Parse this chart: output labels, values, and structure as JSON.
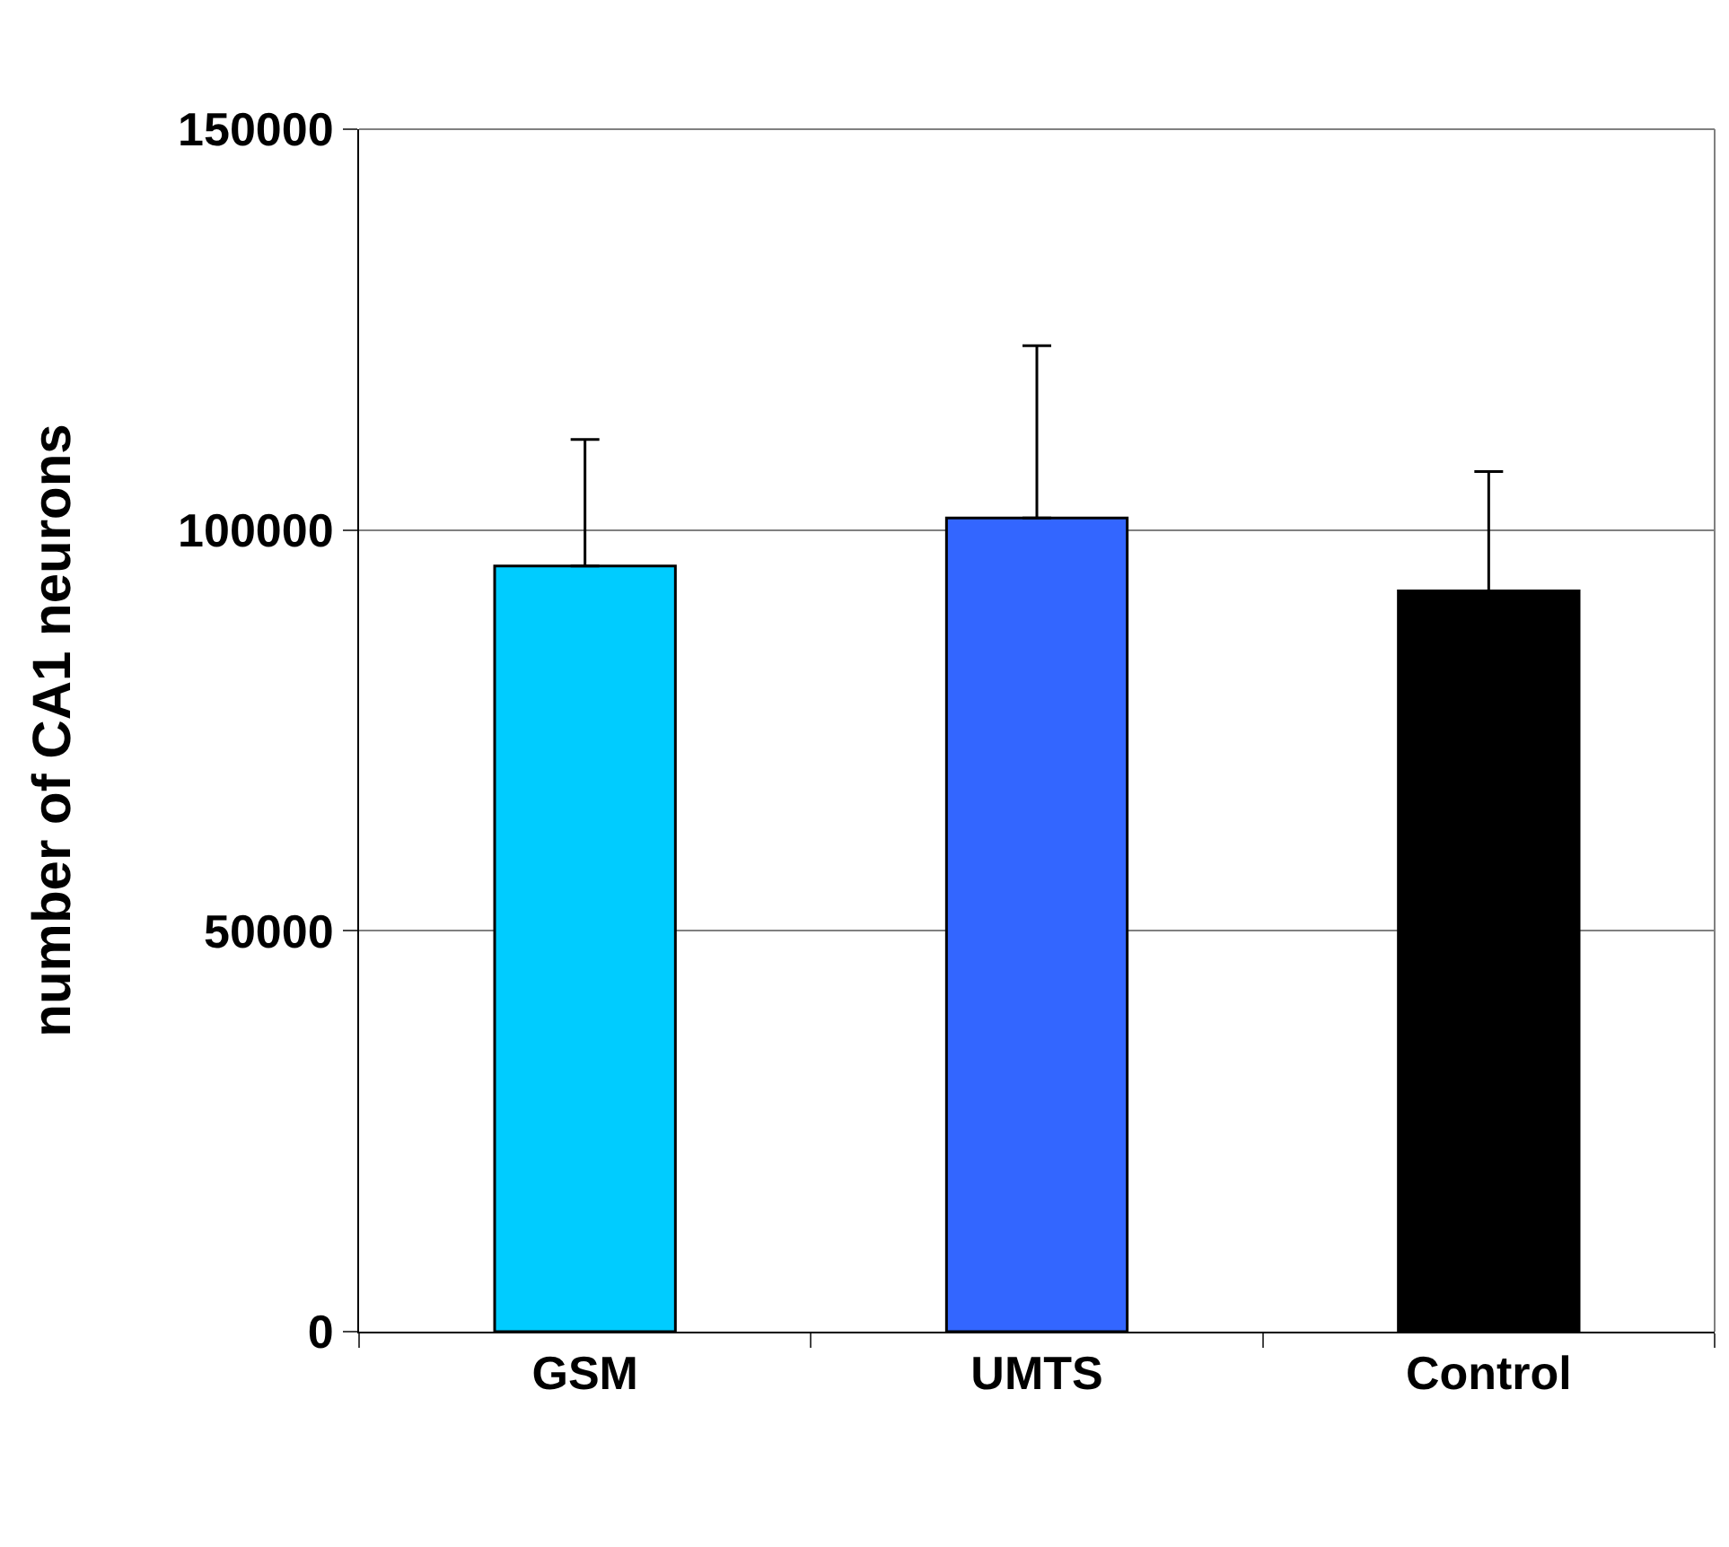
{
  "chart_data": {
    "type": "bar",
    "ylabel": "number of CA1 neurons",
    "categories": [
      "GSM",
      "UMTS",
      "Control"
    ],
    "values": [
      95500,
      101500,
      92400
    ],
    "colors": [
      "#00ccff",
      "#3366ff",
      "#000000"
    ],
    "errors": [
      [
        95500,
        111300
      ],
      [
        101500,
        123000
      ],
      [
        92400,
        107300
      ]
    ],
    "ylim": [
      0,
      150000
    ],
    "yticks": [
      0,
      50000,
      100000,
      150000
    ],
    "grid": "y"
  }
}
